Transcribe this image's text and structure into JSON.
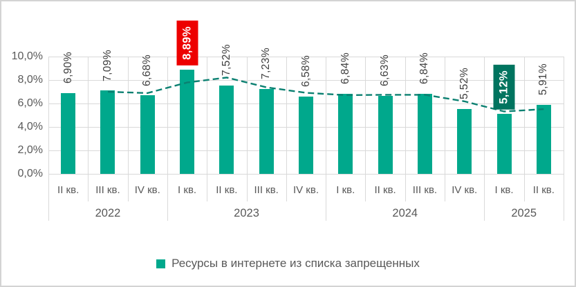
{
  "chart_data": {
    "type": "bar",
    "title": "",
    "y_axis": {
      "min": 0,
      "max": 10,
      "step": 2,
      "tick_labels": [
        "0,0%",
        "2,0%",
        "4,0%",
        "6,0%",
        "8,0%",
        "10,0%"
      ]
    },
    "categories": [
      "II кв.",
      "III кв.",
      "IV кв.",
      "I кв.",
      "II кв.",
      "III кв.",
      "IV кв.",
      "I кв.",
      "II кв.",
      "III кв.",
      "IV кв.",
      "I кв.",
      "II кв."
    ],
    "year_groups": [
      {
        "label": "2022",
        "span": 3
      },
      {
        "label": "2023",
        "span": 4
      },
      {
        "label": "2024",
        "span": 4
      },
      {
        "label": "2025",
        "span": 2
      }
    ],
    "series": [
      {
        "name": "Ресурсы в интернете из списка запрещенных",
        "values": [
          6.9,
          7.09,
          6.68,
          8.89,
          7.52,
          7.23,
          6.58,
          6.84,
          6.63,
          6.84,
          5.52,
          5.12,
          5.91
        ],
        "labels": [
          "6,90%",
          "7,09%",
          "6,68%",
          "8,89%",
          "7,52%",
          "7,23%",
          "6,58%",
          "6,84%",
          "6,63%",
          "6,84%",
          "5,52%",
          "5,12%",
          "5,91%"
        ]
      }
    ],
    "highlights": [
      {
        "index": 3,
        "label": "8,89%",
        "color": "#ed0000"
      },
      {
        "index": 11,
        "label": "5,12%",
        "color": "#00745f"
      }
    ],
    "trendline": {
      "type": "moving_average_2",
      "style": "dashed",
      "color": "#0b8071",
      "values": [
        null,
        7.0,
        6.89,
        7.79,
        8.21,
        7.38,
        6.91,
        6.71,
        6.74,
        6.74,
        6.18,
        5.32,
        5.52
      ]
    },
    "legend": {
      "label": "Ресурсы в интернете из списка запрещенных"
    },
    "colors": {
      "bar": "#00a88c",
      "grid": "#d9d9d9",
      "axis_text": "#595959",
      "value_text": "#404040",
      "highlight_text": "#ffffff"
    },
    "layout_hints": {
      "grid": true,
      "legend_position": "bottom",
      "value_labels_rotated": true
    }
  }
}
